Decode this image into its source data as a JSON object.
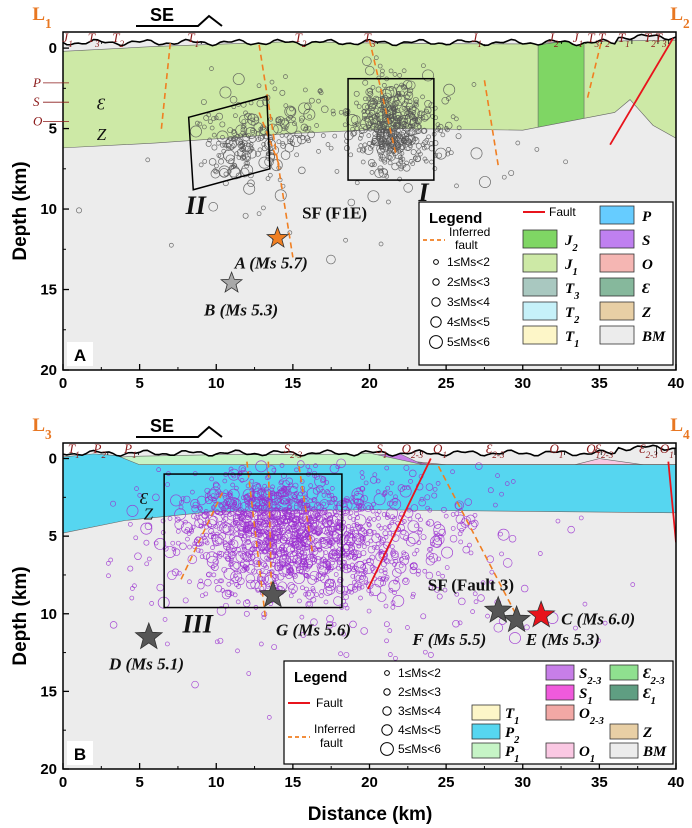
{
  "panels": [
    {
      "id": "A",
      "panel_label": "A",
      "left_section_label": "L1",
      "right_section_label": "L2",
      "direction_label": "SE",
      "surface_units": [
        {
          "text": "J1",
          "km": 0.3
        },
        {
          "text": "T3",
          "km": 2.0
        },
        {
          "text": "T2",
          "km": 3.6
        },
        {
          "text": "T1",
          "km": 8.5
        },
        {
          "text": "T2",
          "km": 15.5
        },
        {
          "text": "T3",
          "km": 20.0
        },
        {
          "text": "J1",
          "km": 27.0
        },
        {
          "text": "J2",
          "km": 32.0
        },
        {
          "text": "J1",
          "km": 33.6
        },
        {
          "text": "T3",
          "km": 34.6
        },
        {
          "text": "T2",
          "km": 35.3
        },
        {
          "text": "T1",
          "km": 36.6
        },
        {
          "text": "T2",
          "km": 38.3
        },
        {
          "text": "T3",
          "km": 39.0
        }
      ],
      "left_units": [
        {
          "text": "P",
          "depth": 2.1
        },
        {
          "text": "S",
          "depth": 3.3
        },
        {
          "text": "O",
          "depth": 4.5
        },
        {
          "text": "Ɛ",
          "depth": 3.5
        },
        {
          "text": "Z",
          "depth": 5.4
        }
      ],
      "fault_label": "SF (F1E)",
      "box_labels": [
        "II",
        "I"
      ],
      "earthquakes": [
        {
          "id": "A",
          "label": "A (Ms 5.7)",
          "x_km": 14.0,
          "depth_km": 11.8,
          "color": "#f07f22"
        },
        {
          "id": "B",
          "label": "B (Ms 5.3)",
          "x_km": 11.0,
          "depth_km": 14.6,
          "color": "#a9a9a9"
        }
      ],
      "legend": {
        "title": "Legend",
        "fault": "Fault",
        "inferred_fault": [
          "Inferred",
          "fault"
        ],
        "magnitudes": [
          "1≤Ms<2",
          "2≤Ms<3",
          "3≤Ms<4",
          "4≤Ms<5",
          "5≤Ms<6"
        ],
        "units": [
          {
            "text": "P",
            "color": "#66ccff"
          },
          {
            "text": "J2",
            "color": "#7fd664"
          },
          {
            "text": "S",
            "color": "#bf80f0"
          },
          {
            "text": "J1",
            "color": "#cde9a6"
          },
          {
            "text": "O",
            "color": "#f5b6b3"
          },
          {
            "text": "T3",
            "color": "#a9c8c0"
          },
          {
            "text": "Ɛ",
            "color": "#86b89c"
          },
          {
            "text": "T2",
            "color": "#c6f1f9"
          },
          {
            "text": "Z",
            "color": "#e8cfa5"
          },
          {
            "text": "T1",
            "color": "#fdf6c8"
          },
          {
            "text": "BM",
            "color": "#ececec"
          }
        ]
      }
    },
    {
      "id": "B",
      "panel_label": "B",
      "left_section_label": "L3",
      "right_section_label": "L4",
      "direction_label": "SE",
      "surface_units": [
        {
          "text": "T1",
          "km": 0.7
        },
        {
          "text": "P2",
          "km": 2.4
        },
        {
          "text": "P1",
          "km": 4.4
        },
        {
          "text": "S2-3",
          "km": 15.0
        },
        {
          "text": "S1",
          "km": 20.8
        },
        {
          "text": "O2-3",
          "km": 22.8
        },
        {
          "text": "O1",
          "km": 24.6
        },
        {
          "text": "Ɛ2-3",
          "km": 28.2
        },
        {
          "text": "O1",
          "km": 32.2
        },
        {
          "text": "Ɛ2-3",
          "km": 35.3
        },
        {
          "text": "O1",
          "km": 34.6
        },
        {
          "text": "Ɛ2-3",
          "km": 38.2
        },
        {
          "text": "O1",
          "km": 39.4
        }
      ],
      "left_units": [
        {
          "text": "Ɛ",
          "depth": 2.6
        },
        {
          "text": "Z",
          "depth": 3.6
        }
      ],
      "fault_label": "SF (Fault 3)",
      "box_labels": [
        "III"
      ],
      "earthquakes": [
        {
          "id": "C",
          "label": "C (Ms 6.0)",
          "x_km": 31.2,
          "depth_km": 10.1,
          "color": "#e8141c"
        },
        {
          "id": "D",
          "label": "D (Ms 5.1)",
          "x_km": 5.6,
          "depth_km": 11.5,
          "color": "#555555"
        },
        {
          "id": "E",
          "label": "E (Ms 5.3)",
          "x_km": 29.6,
          "depth_km": 10.4,
          "color": "#555555"
        },
        {
          "id": "F",
          "label": "F (Ms 5.5)",
          "x_km": 28.4,
          "depth_km": 9.8,
          "color": "#555555"
        },
        {
          "id": "G",
          "label": "G (Ms 5.6)",
          "x_km": 13.7,
          "depth_km": 8.8,
          "color": "#555555"
        }
      ],
      "legend": {
        "title": "Legend",
        "fault": "Fault",
        "inferred_fault": [
          "Inferred",
          "fault"
        ],
        "magnitudes": [
          "1≤Ms<2",
          "2≤Ms<3",
          "3≤Ms<4",
          "4≤Ms<5",
          "5≤Ms<6"
        ],
        "units": [
          {
            "text": "S2-3",
            "color": "#c77ee8"
          },
          {
            "text": "Ɛ2-3",
            "color": "#8fe08f"
          },
          {
            "text": "S1",
            "color": "#f05adc"
          },
          {
            "text": "Ɛ1",
            "color": "#5f9e82"
          },
          {
            "text": "T1",
            "color": "#fdf6c8"
          },
          {
            "text": "O2-3",
            "color": "#f2a8a5"
          },
          {
            "text": "P2",
            "color": "#56d6f0"
          },
          {
            "text": "Z",
            "color": "#e8cfa5"
          },
          {
            "text": "P1",
            "color": "#c6f4c6"
          },
          {
            "text": "O1",
            "color": "#fac8e3"
          },
          {
            "text": "BM",
            "color": "#ececec"
          }
        ]
      }
    }
  ],
  "axes": {
    "x_title": "Distance (km)",
    "y_title": "Depth (km)",
    "x_ticks": [
      0,
      5,
      10,
      15,
      20,
      25,
      30,
      35,
      40
    ],
    "y_ticks": [
      0,
      5,
      10,
      15,
      20
    ],
    "x_range": [
      0,
      40
    ],
    "y_range": [
      -1,
      20
    ]
  }
}
